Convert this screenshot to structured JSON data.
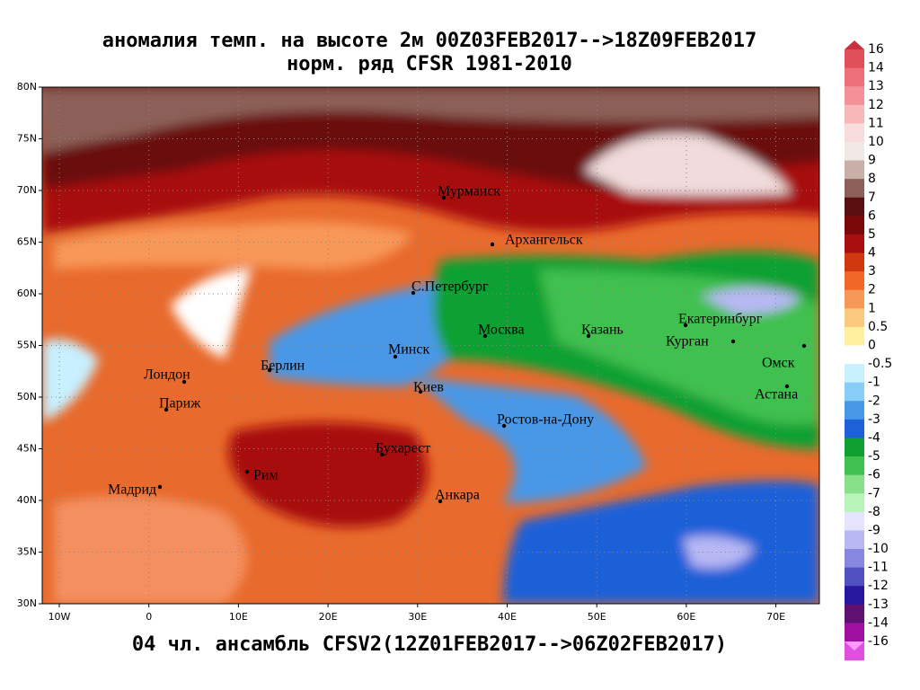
{
  "header": {
    "title": "аномалия темп. на высоте 2м 00Z03FEB2017-->18Z09FEB2017",
    "subtitle": "норм. ряд CFSR 1981-2010"
  },
  "footer": "04 чл. ансамбль CFSV2(12Z01FEB2017-->06Z02FEB2017)",
  "map": {
    "lat_labels": [
      "80N",
      "75N",
      "70N",
      "65N",
      "60N",
      "55N",
      "50N",
      "45N",
      "40N",
      "35N",
      "30N"
    ],
    "lon_labels": [
      "10W",
      "0",
      "10E",
      "20E",
      "30E",
      "40E",
      "50E",
      "60E",
      "70E"
    ],
    "cities": [
      "Мурманск",
      "Архангельск",
      "С.Петербург",
      "Москва",
      "Казань",
      "Екатеринбург",
      "Курган",
      "Омск",
      "Астана",
      "Минск",
      "Берлин",
      "Лондон",
      "Париж",
      "Киев",
      "Ростов-на-Дону",
      "Бухарест",
      "Рим",
      "Мадрид",
      "Анкара"
    ]
  },
  "colorbar": {
    "labels": [
      "16",
      "14",
      "13",
      "12",
      "11",
      "10",
      "9",
      "8",
      "7",
      "6",
      "5",
      "4",
      "3",
      "2",
      "1",
      "0.5",
      "0",
      "-0.5",
      "-1",
      "-2",
      "-3",
      "-4",
      "-5",
      "-6",
      "-7",
      "-8",
      "-9",
      "-10",
      "-11",
      "-12",
      "-13",
      "-14",
      "-16"
    ],
    "colors": [
      "#c83040",
      "#e05058",
      "#ec7078",
      "#f49098",
      "#f8b8b8",
      "#f8dcdc",
      "#f0e8e4",
      "#c8b0a8",
      "#8c6058",
      "#5a1010",
      "#7a0808",
      "#a81010",
      "#d03810",
      "#f06828",
      "#f89858",
      "#fcc880",
      "#fff0a0",
      "#ffffff",
      "#c8f0ff",
      "#88ccf8",
      "#4898e8",
      "#1e60d8",
      "#10a030",
      "#40c050",
      "#88e088",
      "#b8f4b8",
      "#e4e4ff",
      "#b8b8f4",
      "#8888e0",
      "#5050c0",
      "#2818a0",
      "#601070",
      "#a010a0",
      "#e050e0",
      "#ff98ff"
    ]
  }
}
